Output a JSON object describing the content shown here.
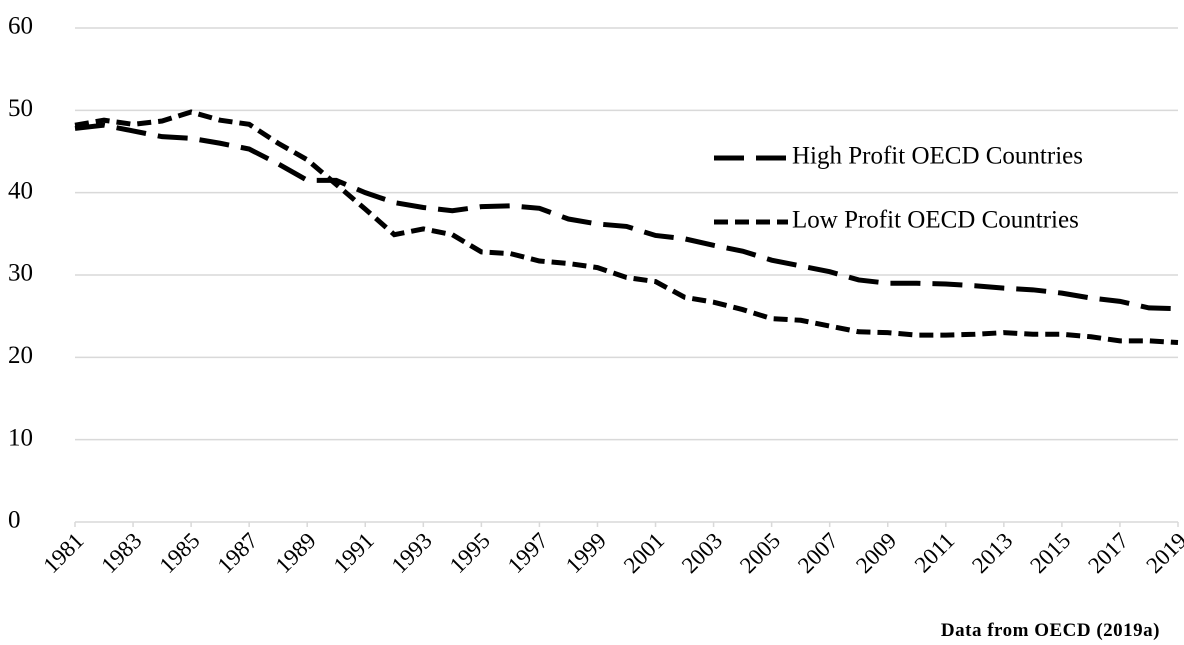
{
  "chart_data": {
    "type": "line",
    "x": [
      1981,
      1982,
      1983,
      1984,
      1985,
      1986,
      1987,
      1988,
      1989,
      1990,
      1991,
      1992,
      1993,
      1994,
      1995,
      1996,
      1997,
      1998,
      1999,
      2000,
      2001,
      2002,
      2003,
      2004,
      2005,
      2006,
      2007,
      2008,
      2009,
      2010,
      2011,
      2012,
      2013,
      2014,
      2015,
      2016,
      2017,
      2018,
      2019
    ],
    "xlim": [
      1981,
      2019
    ],
    "xticks": [
      1981,
      1983,
      1985,
      1987,
      1989,
      1991,
      1993,
      1995,
      1997,
      1999,
      2001,
      2003,
      2005,
      2007,
      2009,
      2011,
      2013,
      2015,
      2017,
      2019
    ],
    "ylim": [
      0,
      60
    ],
    "yticks": [
      0,
      10,
      20,
      30,
      40,
      50,
      60
    ],
    "grid": true,
    "legend": "right",
    "annotation": "Data from OECD (2019a)",
    "series": [
      {
        "name": "High Profit OECD Countries",
        "color": "#000000",
        "values": [
          47.8,
          48.2,
          47.5,
          46.8,
          46.6,
          46.0,
          45.3,
          43.5,
          41.5,
          41.5,
          40.0,
          38.8,
          38.2,
          37.8,
          38.3,
          38.4,
          38.1,
          36.8,
          36.2,
          35.9,
          34.8,
          34.4,
          33.6,
          32.9,
          31.8,
          31.1,
          30.4,
          29.4,
          29.0,
          29.0,
          28.9,
          28.7,
          28.4,
          28.2,
          27.8,
          27.2,
          26.8,
          26.0,
          25.9
        ]
      },
      {
        "name": "Low Profit OECD Countries",
        "color": "#000000",
        "values": [
          48.2,
          48.8,
          48.3,
          48.7,
          49.8,
          48.8,
          48.3,
          46.0,
          44.0,
          41.0,
          38.0,
          34.9,
          35.6,
          34.9,
          32.8,
          32.6,
          31.7,
          31.4,
          30.9,
          29.7,
          29.2,
          27.3,
          26.7,
          25.8,
          24.7,
          24.5,
          23.8,
          23.1,
          23.0,
          22.7,
          22.7,
          22.8,
          23.0,
          22.8,
          22.8,
          22.5,
          22.0,
          22.0,
          21.8
        ]
      }
    ]
  }
}
